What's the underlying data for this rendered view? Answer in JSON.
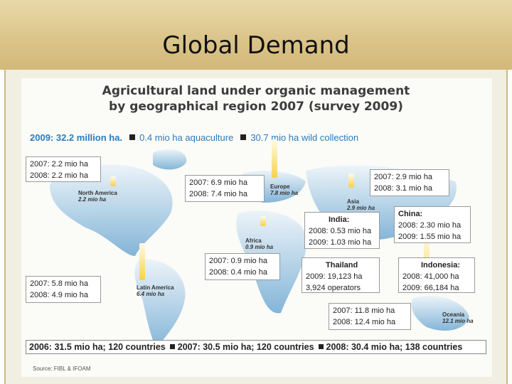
{
  "title": "Global Demand",
  "heading": {
    "line1": "Agricultural land under organic management",
    "line2": "by geographical region 2007 (survey 2009)"
  },
  "legend": {
    "total": "2009: 32.2  million ha.",
    "aquaculture": "0.4 mio ha aquaculture",
    "wild": "30.7 mio ha wild collection"
  },
  "regions": {
    "north_america": {
      "name": "North America",
      "value": "2.2 mio ha"
    },
    "europe": {
      "name": "Europe",
      "value": "7.8 mio ha"
    },
    "asia": {
      "name": "Asia",
      "value": "2.9 mio ha"
    },
    "africa": {
      "name": "Africa",
      "value": "0.9 mio ha"
    },
    "latin_america": {
      "name": "Latin America",
      "value": "6.4 mio ha"
    },
    "oceania": {
      "name": "Oceania",
      "value": "12.1 mio ha"
    }
  },
  "boxes": {
    "north_america": [
      "2007: 2.2 mio ha",
      "2008: 2.2 mio ha"
    ],
    "europe": [
      "2007: 6.9 mio ha",
      "2008: 7.4 mio ha"
    ],
    "asia": [
      "2007: 2.9 mio ha",
      "2008: 3.1 mio ha"
    ],
    "india": {
      "title": "India:",
      "lines": [
        "2008: 0.53 mio ha",
        "2009: 1.03 mio ha"
      ]
    },
    "china": {
      "title": "China:",
      "lines": [
        "2008: 2.30 mio ha",
        "2009: 1.55 mio ha"
      ]
    },
    "africa": [
      "2007: 0.9 mio ha",
      "2008: 0.4 mio ha"
    ],
    "thailand": {
      "title": "Thailand",
      "lines": [
        "2009: 19,123 ha",
        "3,924 operators"
      ]
    },
    "indonesia": {
      "title": "Indonesia:",
      "lines": [
        "2008: 41,000 ha",
        "2009:  66,184 ha"
      ]
    },
    "latin_america": [
      "2007: 5.8 mio ha",
      "2008: 4.9 mio ha"
    ],
    "oceania": [
      "2007: 11.8 mio ha",
      "2008: 12.4 mio ha"
    ]
  },
  "bottom": {
    "y2006": "2006: 31.5 mio ha; 120 countries",
    "y2007": "2007: 30.5 mio ha; 120 countries",
    "y2008": "2008: 30.4 mio ha; 138 countries"
  },
  "source": "Source: FIBL & IFOAM",
  "colors": {
    "title_band": "#dcc58a",
    "continent": "#8fbedd",
    "bar": "#f5d24a",
    "legend_text": "#2a7cc0"
  }
}
